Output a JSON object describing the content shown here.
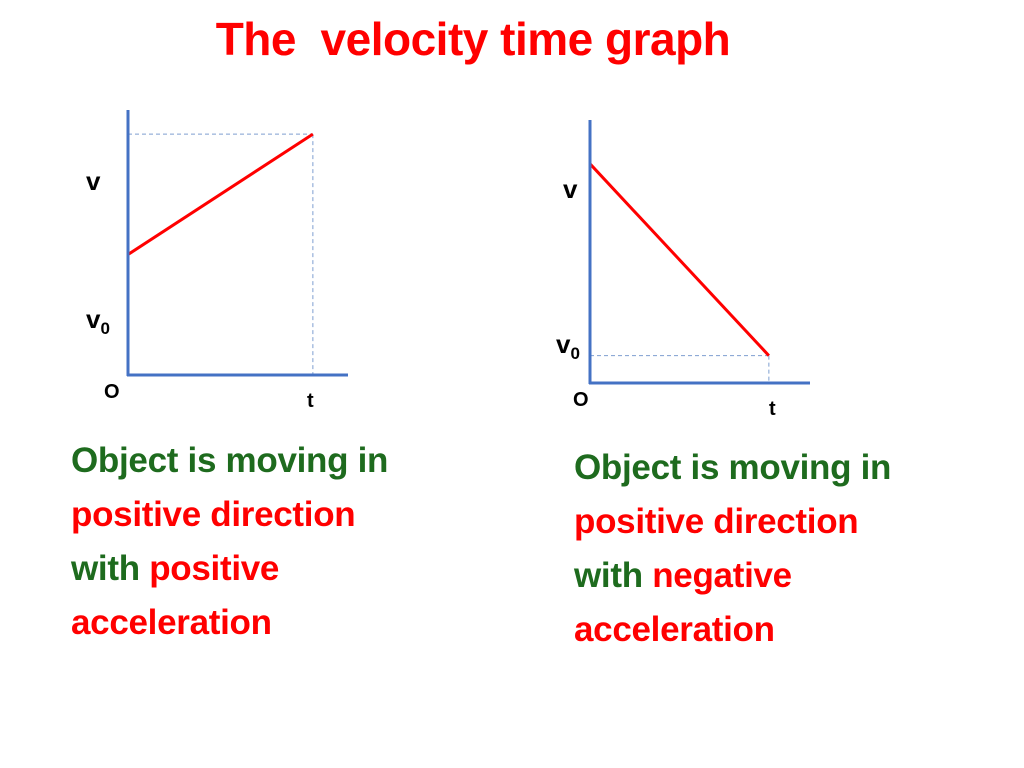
{
  "slide": {
    "title": "The  velocity time graph"
  },
  "chart_data": [
    {
      "type": "line",
      "x": [
        0,
        1
      ],
      "y": [
        1,
        2
      ],
      "xlim": [
        0,
        1.19
      ],
      "ylim": [
        0,
        2.2
      ],
      "tick_labels": {
        "origin": "O",
        "x_end": "t",
        "y_initial": "v",
        "y_initial_sub": "0",
        "y_final": "v"
      },
      "line_color": "#ff0000",
      "axis_color": "#4472c4",
      "guide_color": "#7f9fd0",
      "caption": {
        "line1": "Object is moving in",
        "line2": "positive direction",
        "line3a": "with ",
        "line3b": "positive",
        "line4": "acceleration"
      }
    },
    {
      "type": "line",
      "x": [
        0,
        1
      ],
      "y": [
        2,
        0.25
      ],
      "xlim": [
        0,
        1.23
      ],
      "ylim": [
        0,
        2.4
      ],
      "tick_labels": {
        "origin": "O",
        "x_end": "t",
        "y_initial": "v",
        "y_final": "v",
        "y_final_sub": "0"
      },
      "line_color": "#ff0000",
      "axis_color": "#4472c4",
      "guide_color": "#7f9fd0",
      "caption": {
        "line1": "Object is moving in",
        "line2": "positive direction",
        "line3a": "with ",
        "line3b": "negative",
        "line4": "acceleration"
      }
    }
  ]
}
